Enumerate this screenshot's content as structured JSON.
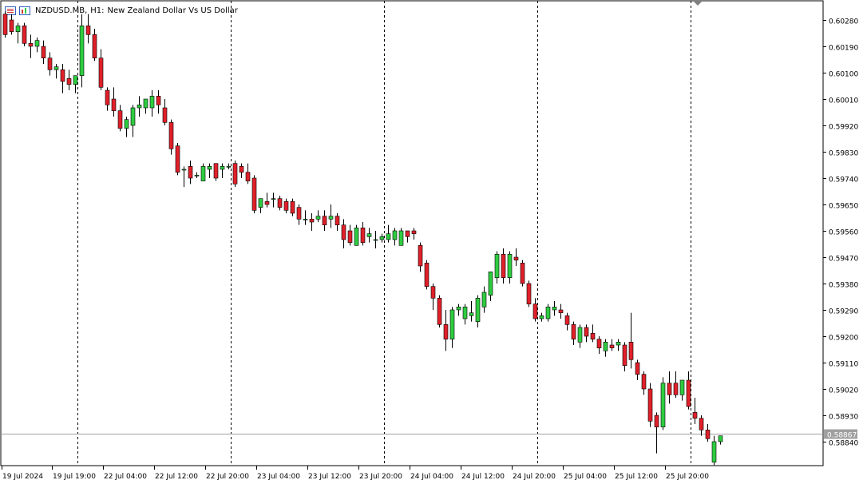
{
  "header": {
    "symbol": "NZDUSD.MB,",
    "timeframe": "H1:",
    "description": "New Zealand Dollar Vs US Dollar"
  },
  "chart_data": {
    "type": "candlestick",
    "y_ticks": [
      "0.60280",
      "0.60190",
      "0.60100",
      "0.60010",
      "0.59920",
      "0.59830",
      "0.59740",
      "0.59650",
      "0.59560",
      "0.59470",
      "0.59380",
      "0.59290",
      "0.59200",
      "0.59110",
      "0.59020",
      "0.58930",
      "0.58840"
    ],
    "ylim": [
      0.588,
      0.6033
    ],
    "current_price": "0.58867",
    "x_tick_labels": [
      "19 Jul 2024",
      "19 Jul 19:00",
      "22 Jul 04:00",
      "22 Jul 12:00",
      "22 Jul 20:00",
      "23 Jul 04:00",
      "23 Jul 12:00",
      "23 Jul 20:00",
      "24 Jul 04:00",
      "24 Jul 12:00",
      "24 Jul 20:00",
      "25 Jul 04:00",
      "25 Jul 12:00",
      "25 Jul 20:00"
    ],
    "candles": [
      [
        0.603,
        0.6031,
        0.6022,
        0.6023
      ],
      [
        0.6028,
        0.603,
        0.6023,
        0.6024
      ],
      [
        0.6024,
        0.6027,
        0.602,
        0.6026
      ],
      [
        0.6026,
        0.6027,
        0.6019,
        0.602
      ],
      [
        0.602,
        0.6023,
        0.6015,
        0.6019
      ],
      [
        0.6019,
        0.6022,
        0.6017,
        0.6021
      ],
      [
        0.6019,
        0.6021,
        0.6013,
        0.6015
      ],
      [
        0.6015,
        0.6017,
        0.6009,
        0.6011
      ],
      [
        0.6011,
        0.6013,
        0.6008,
        0.6012
      ],
      [
        0.6011,
        0.6013,
        0.6003,
        0.6007
      ],
      [
        0.6008,
        0.6011,
        0.6004,
        0.6006
      ],
      [
        0.6006,
        0.6009,
        0.6003,
        0.6009
      ],
      [
        0.6009,
        0.603,
        0.6005,
        0.6026
      ],
      [
        0.6026,
        0.603,
        0.602,
        0.6023
      ],
      [
        0.6023,
        0.6025,
        0.6014,
        0.6015
      ],
      [
        0.6015,
        0.6018,
        0.6004,
        0.6005
      ],
      [
        0.6004,
        0.6005,
        0.5997,
        0.5999
      ],
      [
        0.6001,
        0.6005,
        0.5995,
        0.5997
      ],
      [
        0.5997,
        0.5999,
        0.599,
        0.5991
      ],
      [
        0.5991,
        0.5995,
        0.5988,
        0.5994
      ],
      [
        0.5992,
        0.5999,
        0.5988,
        0.5998
      ],
      [
        0.5998,
        0.6002,
        0.5995,
        0.5999
      ],
      [
        0.5998,
        0.6001,
        0.5996,
        0.6001
      ],
      [
        0.5998,
        0.6004,
        0.5995,
        0.6002
      ],
      [
        0.6002,
        0.6004,
        0.5996,
        0.5999
      ],
      [
        0.5998,
        0.6001,
        0.5992,
        0.5993
      ],
      [
        0.5993,
        0.5994,
        0.5982,
        0.5984
      ],
      [
        0.5985,
        0.5986,
        0.5975,
        0.5976
      ],
      [
        0.5977,
        0.5978,
        0.5971,
        0.5977
      ],
      [
        0.5978,
        0.598,
        0.5972,
        0.5974
      ],
      [
        0.5975,
        0.5976,
        0.5974,
        0.5975
      ],
      [
        0.5973,
        0.5979,
        0.5973,
        0.5978
      ],
      [
        0.5977,
        0.5979,
        0.5974,
        0.5978
      ],
      [
        0.5979,
        0.5979,
        0.5973,
        0.5974
      ],
      [
        0.5977,
        0.5979,
        0.5974,
        0.5978
      ],
      [
        0.5978,
        0.5979,
        0.5977,
        0.5978
      ],
      [
        0.5979,
        0.598,
        0.5971,
        0.5972
      ],
      [
        0.5978,
        0.5979,
        0.5974,
        0.5976
      ],
      [
        0.5976,
        0.5979,
        0.5972,
        0.5973
      ],
      [
        0.5974,
        0.5975,
        0.5962,
        0.5963
      ],
      [
        0.5964,
        0.5967,
        0.5962,
        0.5967
      ],
      [
        0.5966,
        0.5969,
        0.5964,
        0.5965
      ],
      [
        0.5967,
        0.5969,
        0.5964,
        0.5967
      ],
      [
        0.5967,
        0.5968,
        0.5963,
        0.5964
      ],
      [
        0.5966,
        0.5967,
        0.5962,
        0.5963
      ],
      [
        0.5966,
        0.5967,
        0.5961,
        0.5962
      ],
      [
        0.5964,
        0.5965,
        0.5958,
        0.596
      ],
      [
        0.596,
        0.5963,
        0.5958,
        0.596
      ],
      [
        0.596,
        0.5962,
        0.5956,
        0.5959
      ],
      [
        0.596,
        0.5963,
        0.5959,
        0.5961
      ],
      [
        0.5961,
        0.5963,
        0.5956,
        0.5958
      ],
      [
        0.596,
        0.5965,
        0.5957,
        0.5961
      ],
      [
        0.5961,
        0.5962,
        0.5956,
        0.5958
      ],
      [
        0.5958,
        0.596,
        0.595,
        0.5953
      ],
      [
        0.5956,
        0.5958,
        0.5951,
        0.5952
      ],
      [
        0.5951,
        0.5958,
        0.5951,
        0.5957
      ],
      [
        0.5957,
        0.5959,
        0.5951,
        0.5952
      ],
      [
        0.5954,
        0.5957,
        0.5952,
        0.5955
      ],
      [
        0.5953,
        0.5956,
        0.595,
        0.5953
      ],
      [
        0.5953,
        0.5955,
        0.5952,
        0.5954
      ],
      [
        0.5953,
        0.5958,
        0.5952,
        0.5955
      ],
      [
        0.5953,
        0.5957,
        0.5951,
        0.5956
      ],
      [
        0.5951,
        0.5957,
        0.5951,
        0.5956
      ],
      [
        0.5956,
        0.5956,
        0.5952,
        0.5954
      ],
      [
        0.5956,
        0.5957,
        0.5953,
        0.5955
      ],
      [
        0.5951,
        0.5952,
        0.5942,
        0.5944
      ],
      [
        0.5945,
        0.5946,
        0.5936,
        0.5937
      ],
      [
        0.5937,
        0.5938,
        0.5929,
        0.5933
      ],
      [
        0.5933,
        0.5934,
        0.5923,
        0.5924
      ],
      [
        0.5924,
        0.5929,
        0.5915,
        0.5919
      ],
      [
        0.5919,
        0.593,
        0.5916,
        0.5929
      ],
      [
        0.5929,
        0.5931,
        0.5927,
        0.593
      ],
      [
        0.5926,
        0.5931,
        0.5924,
        0.593
      ],
      [
        0.5927,
        0.5932,
        0.5925,
        0.5928
      ],
      [
        0.5925,
        0.5934,
        0.5923,
        0.5933
      ],
      [
        0.593,
        0.5937,
        0.5928,
        0.5935
      ],
      [
        0.5934,
        0.5942,
        0.5932,
        0.5942
      ],
      [
        0.594,
        0.5949,
        0.5938,
        0.5948
      ],
      [
        0.5948,
        0.595,
        0.5938,
        0.594
      ],
      [
        0.594,
        0.5949,
        0.5938,
        0.5948
      ],
      [
        0.5947,
        0.595,
        0.5944,
        0.5946
      ],
      [
        0.5945,
        0.5946,
        0.5937,
        0.5938
      ],
      [
        0.5938,
        0.5939,
        0.593,
        0.5931
      ],
      [
        0.5931,
        0.5933,
        0.5925,
        0.5926
      ],
      [
        0.5926,
        0.5928,
        0.5925,
        0.5927
      ],
      [
        0.5926,
        0.5931,
        0.5925,
        0.593
      ],
      [
        0.5929,
        0.5932,
        0.5927,
        0.593
      ],
      [
        0.5929,
        0.5931,
        0.5926,
        0.5928
      ],
      [
        0.5927,
        0.5928,
        0.5922,
        0.5924
      ],
      [
        0.5924,
        0.5925,
        0.5917,
        0.5919
      ],
      [
        0.5918,
        0.5924,
        0.5916,
        0.5923
      ],
      [
        0.5923,
        0.5924,
        0.5918,
        0.592
      ],
      [
        0.5921,
        0.5924,
        0.5918,
        0.5919
      ],
      [
        0.5919,
        0.592,
        0.5914,
        0.5916
      ],
      [
        0.5915,
        0.5919,
        0.5913,
        0.5918
      ],
      [
        0.5917,
        0.5919,
        0.5915,
        0.5916
      ],
      [
        0.5917,
        0.5919,
        0.5915,
        0.5918
      ],
      [
        0.5917,
        0.5918,
        0.5908,
        0.591
      ],
      [
        0.5918,
        0.5928,
        0.5909,
        0.5912
      ],
      [
        0.5911,
        0.5912,
        0.5905,
        0.5907
      ],
      [
        0.5907,
        0.5908,
        0.59,
        0.5902
      ],
      [
        0.5902,
        0.5904,
        0.5889,
        0.5891
      ],
      [
        0.5893,
        0.5894,
        0.588,
        0.5889
      ],
      [
        0.5889,
        0.5906,
        0.5888,
        0.5904
      ],
      [
        0.5904,
        0.5908,
        0.5897,
        0.59
      ],
      [
        0.5904,
        0.5908,
        0.5899,
        0.59
      ],
      [
        0.59,
        0.5905,
        0.5898,
        0.5905
      ],
      [
        0.5905,
        0.5908,
        0.5895,
        0.5896
      ],
      [
        0.5894,
        0.5899,
        0.589,
        0.5892
      ],
      [
        0.5892,
        0.5893,
        0.5886,
        0.5888
      ],
      [
        0.5888,
        0.589,
        0.5884,
        0.5885
      ],
      [
        0.5877,
        0.5886,
        0.5876,
        0.5884
      ],
      [
        0.5884,
        0.5886,
        0.5883,
        0.5886
      ]
    ],
    "colors": {
      "bull": "#2ecc40",
      "bear": "#e0202a",
      "wick": "#000000",
      "grid": "#000000",
      "price_line": "#a0a0a0",
      "price_tag_bg": "#a0a0a0"
    }
  }
}
